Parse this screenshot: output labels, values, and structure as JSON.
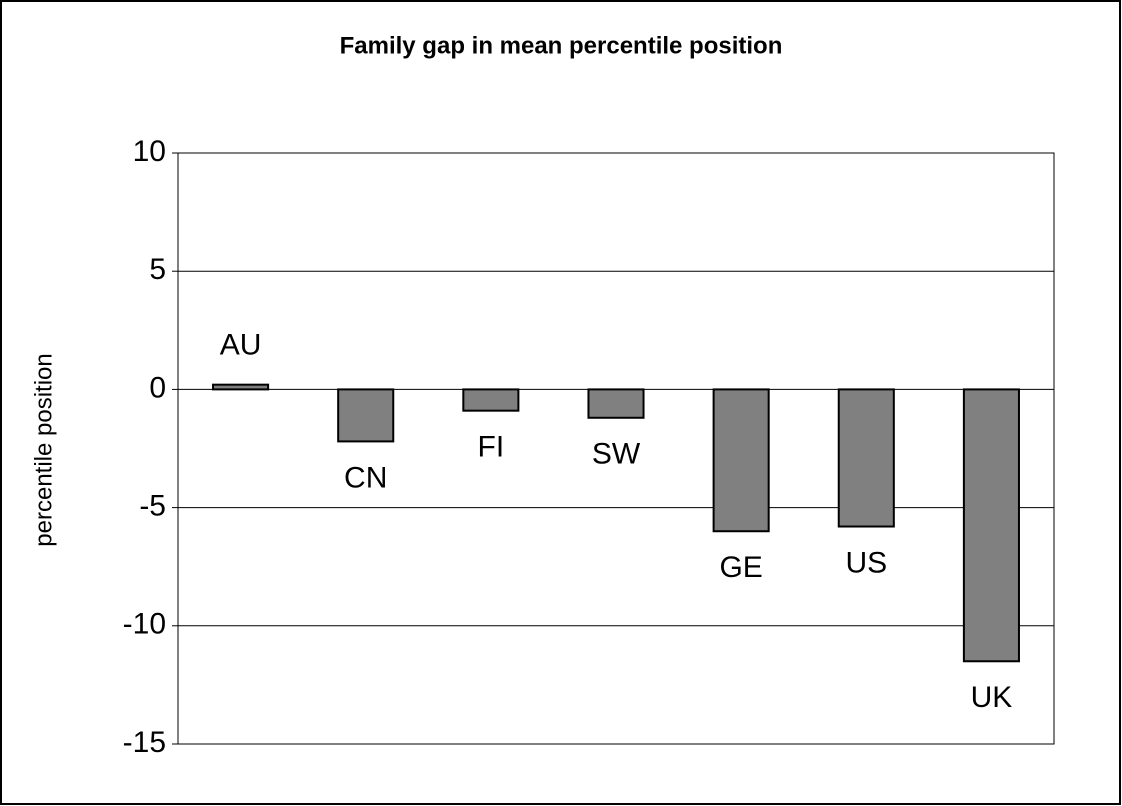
{
  "chart_data": {
    "type": "bar",
    "title": "Family gap in mean percentile position",
    "y_label": "percentile position",
    "categories": [
      "AU",
      "CN",
      "FI",
      "SW",
      "GE",
      "US",
      "UK"
    ],
    "values": [
      0.2,
      -2.2,
      -0.9,
      -1.2,
      -6.0,
      -5.8,
      -11.5
    ],
    "color": "#808080",
    "ylim": [
      -15,
      10
    ],
    "yticks": [
      -15,
      -10,
      -5,
      0,
      5,
      10
    ],
    "grid": true
  }
}
